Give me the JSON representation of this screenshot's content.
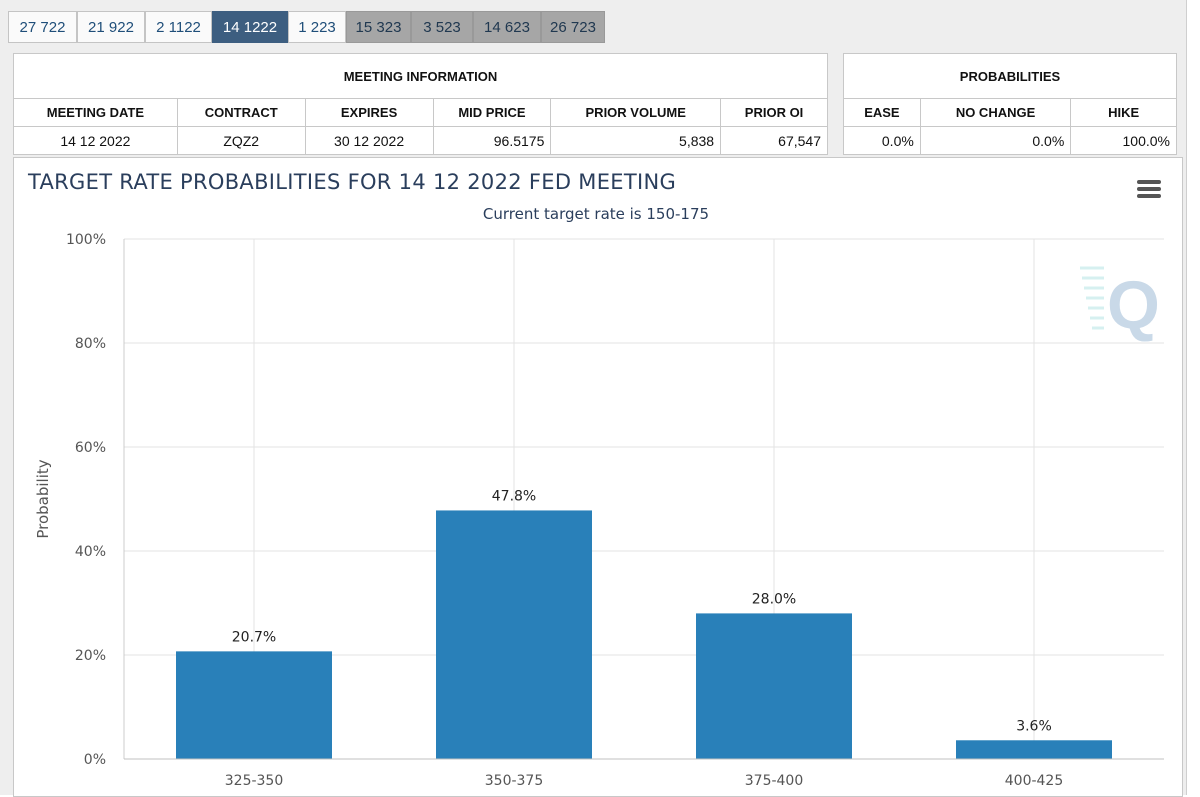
{
  "tabs": [
    {
      "label": "27 722",
      "state": "normal"
    },
    {
      "label": "21 922",
      "state": "normal"
    },
    {
      "label": "2 1122",
      "state": "normal"
    },
    {
      "label": "14 1222",
      "state": "active"
    },
    {
      "label": "1 223",
      "state": "normal"
    },
    {
      "label": "15 323",
      "state": "future"
    },
    {
      "label": "3 523",
      "state": "future"
    },
    {
      "label": "14 623",
      "state": "future"
    },
    {
      "label": "26 723",
      "state": "future"
    }
  ],
  "meeting_info": {
    "title": "MEETING INFORMATION",
    "headers": {
      "date": "MEETING DATE",
      "contract": "CONTRACT",
      "expires": "EXPIRES",
      "mid_price": "MID PRICE",
      "prior_volume": "PRIOR VOLUME",
      "prior_oi": "PRIOR OI"
    },
    "values": {
      "date": "14 12 2022",
      "contract": "ZQZ2",
      "expires": "30 12 2022",
      "mid_price": "96.5175",
      "prior_volume": "5,838",
      "prior_oi": "67,547"
    }
  },
  "probabilities": {
    "title": "PROBABILITIES",
    "headers": {
      "ease": "EASE",
      "no_change": "NO CHANGE",
      "hike": "HIKE"
    },
    "values": {
      "ease": "0.0%",
      "no_change": "0.0%",
      "hike": "100.0%"
    }
  },
  "menu_icon": "hamburger-menu-icon",
  "watermark_icon": "q-logo-icon",
  "chart_data": {
    "type": "bar",
    "title": "TARGET RATE PROBABILITIES FOR 14 12 2022 FED MEETING",
    "subtitle": "Current target rate is 150-175",
    "xlabel": "",
    "ylabel": "Probability",
    "categories": [
      "325-350",
      "350-375",
      "375-400",
      "400-425"
    ],
    "values": [
      20.7,
      47.8,
      28.0,
      3.6
    ],
    "data_labels": [
      "20.7%",
      "47.8%",
      "28.0%",
      "3.6%"
    ],
    "ylim": [
      0,
      100
    ],
    "y_ticks": [
      0,
      20,
      40,
      60,
      80,
      100
    ],
    "y_tick_labels": [
      "0%",
      "20%",
      "40%",
      "60%",
      "80%",
      "100%"
    ],
    "grid": true,
    "legend": "none",
    "bar_color": "#2980b9"
  }
}
